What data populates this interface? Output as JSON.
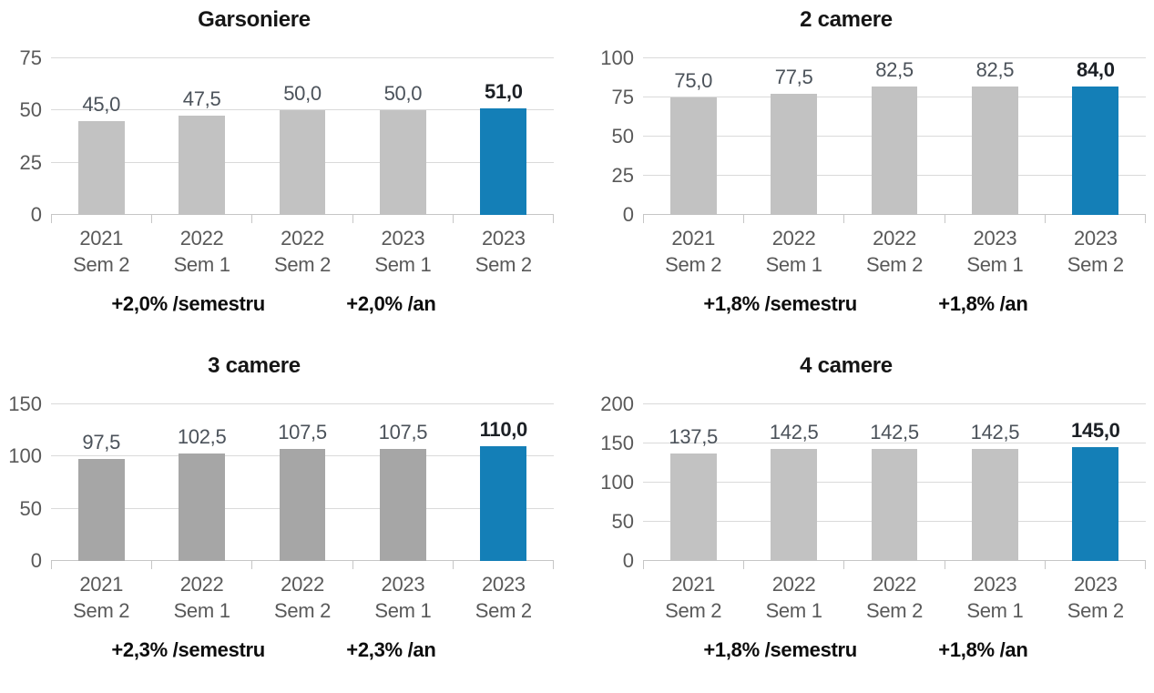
{
  "colors": {
    "highlight_blue": "#147fb7",
    "bar_gray_light": "#c2c2c2",
    "bar_gray_dark": "#a6a6a6",
    "gridline": "#dadada",
    "baseline": "#c6c6c6",
    "axis_text": "#595959",
    "value_label_text": "#4b525a",
    "title_text": "#161616"
  },
  "chart_data": [
    {
      "type": "bar",
      "title": "Garsoniere",
      "categories": [
        "2021 Sem 2",
        "2022 Sem 1",
        "2022 Sem 2",
        "2023 Sem 1",
        "2023 Sem 2"
      ],
      "values": [
        45.0,
        47.5,
        50.0,
        50.0,
        51.0
      ],
      "value_labels": [
        "45,0",
        "47,5",
        "50,0",
        "50,0",
        "51,0"
      ],
      "ylim": [
        0,
        75
      ],
      "yticks": [
        0,
        25,
        50,
        75
      ],
      "grid": true,
      "legend": "none",
      "bar_color": "#c2c2c2",
      "highlight_index": 4,
      "highlight_color": "#147fb7",
      "annotations": [
        "+2,0% /semestru",
        "+2,0% /an"
      ]
    },
    {
      "type": "bar",
      "title": "2 camere",
      "categories": [
        "2021 Sem 2",
        "2022 Sem 1",
        "2022 Sem 2",
        "2023 Sem 1",
        "2023 Sem 2"
      ],
      "values": [
        75.0,
        77.5,
        82.5,
        82.5,
        84.0
      ],
      "value_labels": [
        "75,0",
        "77,5",
        "82,5",
        "82,5",
        "84,0"
      ],
      "ylim": [
        0,
        100
      ],
      "yticks": [
        0,
        25,
        50,
        75,
        100
      ],
      "grid": true,
      "legend": "none",
      "bar_color": "#c2c2c2",
      "highlight_index": 4,
      "highlight_color": "#147fb7",
      "annotations": [
        "+1,8% /semestru",
        "+1,8% /an"
      ]
    },
    {
      "type": "bar",
      "title": "3 camere",
      "categories": [
        "2021 Sem 2",
        "2022 Sem 1",
        "2022 Sem 2",
        "2023 Sem 1",
        "2023 Sem 2"
      ],
      "values": [
        97.5,
        102.5,
        107.5,
        107.5,
        110.0
      ],
      "value_labels": [
        "97,5",
        "102,5",
        "107,5",
        "107,5",
        "110,0"
      ],
      "ylim": [
        0,
        150
      ],
      "yticks": [
        0,
        50,
        100,
        150
      ],
      "grid": true,
      "legend": "none",
      "bar_color": "#a6a6a6",
      "highlight_index": 4,
      "highlight_color": "#147fb7",
      "annotations": [
        "+2,3% /semestru",
        "+2,3% /an"
      ]
    },
    {
      "type": "bar",
      "title": "4 camere",
      "categories": [
        "2021 Sem 2",
        "2022 Sem 1",
        "2022 Sem 2",
        "2023 Sem 1",
        "2023 Sem 2"
      ],
      "values": [
        137.5,
        142.5,
        142.5,
        142.5,
        145.0
      ],
      "value_labels": [
        "137,5",
        "142,5",
        "142,5",
        "142,5",
        "145,0"
      ],
      "ylim": [
        0,
        200
      ],
      "yticks": [
        0,
        50,
        100,
        150,
        200
      ],
      "grid": true,
      "legend": "none",
      "bar_color": "#c2c2c2",
      "highlight_index": 4,
      "highlight_color": "#147fb7",
      "annotations": [
        "+1,8% /semestru",
        "+1,8% /an"
      ]
    }
  ]
}
